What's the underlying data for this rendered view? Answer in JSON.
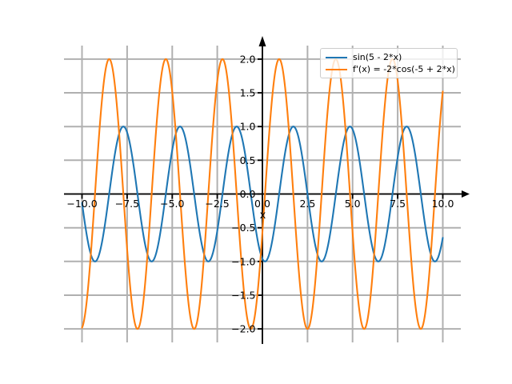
{
  "figure": {
    "background": "#ffffff"
  },
  "chart_data": {
    "type": "line",
    "title": "",
    "xlabel": "x",
    "ylabel": "",
    "xlim": [
      -11,
      11
    ],
    "ylim": [
      -2.2,
      2.2
    ],
    "grid": true,
    "grid_color": "#b0b0b0",
    "axis_color": "#000000",
    "tick_label_color": "#000000",
    "x_ticks": [
      -10,
      -7.5,
      -5,
      -2.5,
      0,
      2.5,
      5,
      7.5,
      10
    ],
    "x_tick_labels": [
      "−10.0",
      "−7.5",
      "−5.0",
      "−2.5",
      "0.0",
      "2.5",
      "5.0",
      "7.5",
      "10.0"
    ],
    "y_ticks": [
      -2,
      -1.5,
      -1,
      -0.5,
      0,
      0.5,
      1,
      1.5,
      2
    ],
    "y_tick_labels": [
      "−2.0",
      "−1.5",
      "−1.0",
      "−0.5",
      "0.0",
      "0.5",
      "1.0",
      "1.5",
      "2.0"
    ],
    "legend": {
      "position": "upper right",
      "entries": [
        {
          "label": "sin(5 - 2*x)",
          "color": "#1f77b4"
        },
        {
          "label": "f'(x) = -2*cos(-5 + 2*x)",
          "color": "#ff7f0e"
        }
      ]
    },
    "series_model": "y = amplitude * fn(phase + freq * x)",
    "series": [
      {
        "name": "sin(5 - 2*x)",
        "color": "#1f77b4",
        "fn": "sin",
        "amplitude": 1,
        "freq": -2,
        "phase": 5,
        "x_start": -10,
        "x_end": 10,
        "samples": 1000
      },
      {
        "name": "f'(x) = -2*cos(-5 + 2*x)",
        "color": "#ff7f0e",
        "fn": "cos",
        "amplitude": -2,
        "freq": 2,
        "phase": -5,
        "x_start": -10,
        "x_end": 10,
        "samples": 1000
      }
    ]
  }
}
